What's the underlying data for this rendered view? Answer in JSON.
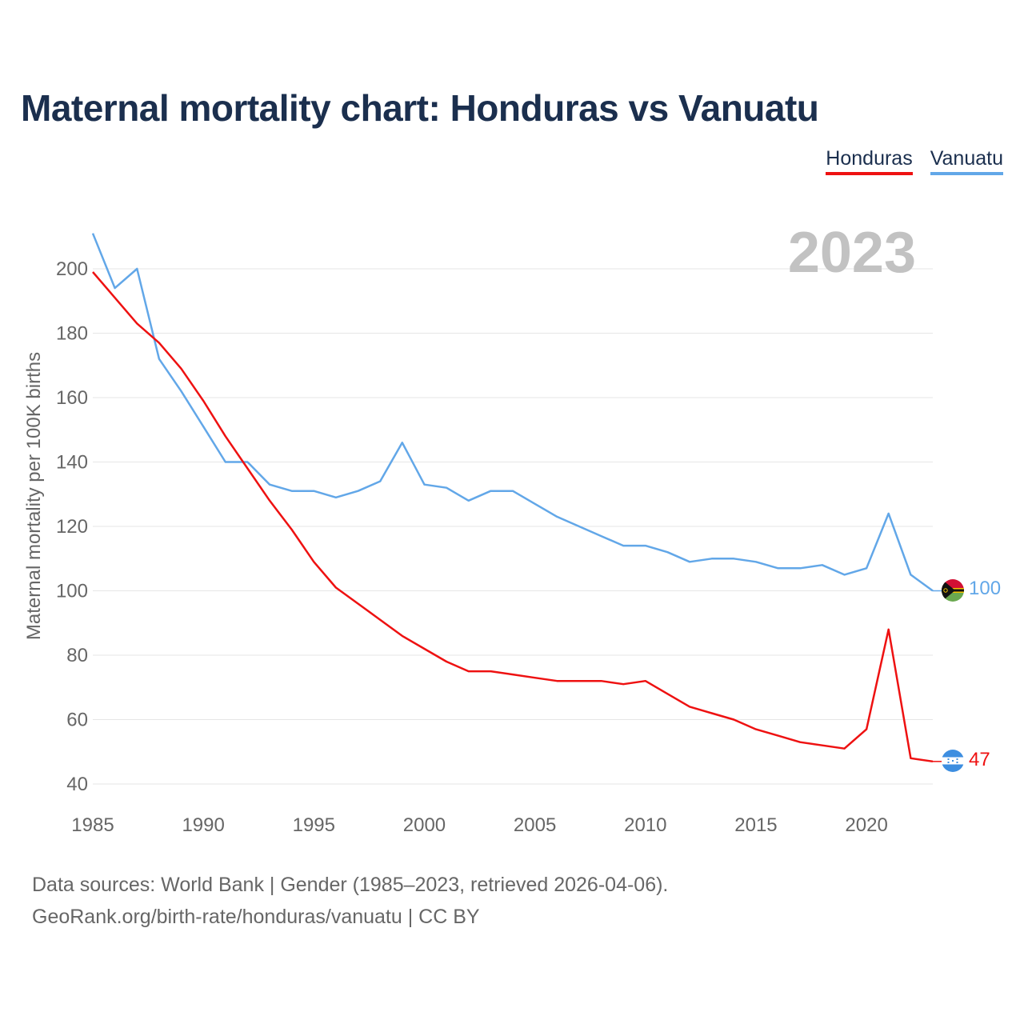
{
  "title": "Maternal mortality chart: Honduras vs Vanuatu",
  "legend": {
    "honduras": "Honduras",
    "vanuatu": "Vanuatu"
  },
  "year_label": "2023",
  "footer": {
    "line1": "Data sources: World Bank | Gender (1985–2023, retrieved 2026-04-06).",
    "line2": "GeoRank.org/birth-rate/honduras/vanuatu | CC BY"
  },
  "colors": {
    "honduras": "#ee1111",
    "vanuatu": "#62a7e8",
    "title": "#1b2f4e",
    "grid": "#e6e6e6",
    "tick": "#666666",
    "year": "#c2c2c2"
  },
  "chart_data": {
    "type": "line",
    "title": "Maternal mortality chart: Honduras vs Vanuatu",
    "xlabel": "",
    "ylabel": "Maternal mortality per 100K births",
    "xlim": [
      1985,
      2023
    ],
    "ylim": [
      38,
      210
    ],
    "x_ticks": [
      1985,
      1990,
      1995,
      2000,
      2005,
      2010,
      2015,
      2020
    ],
    "y_ticks": [
      40,
      60,
      80,
      100,
      120,
      140,
      160,
      180,
      200
    ],
    "x": [
      1985,
      1986,
      1987,
      1988,
      1989,
      1990,
      1991,
      1992,
      1993,
      1994,
      1995,
      1996,
      1997,
      1998,
      1999,
      2000,
      2001,
      2002,
      2003,
      2004,
      2005,
      2006,
      2007,
      2008,
      2009,
      2010,
      2011,
      2012,
      2013,
      2014,
      2015,
      2016,
      2017,
      2018,
      2019,
      2020,
      2021,
      2022,
      2023
    ],
    "series": [
      {
        "name": "Honduras",
        "color": "#ee1111",
        "end_label": "47",
        "values": [
          199,
          191,
          183,
          177,
          169,
          159,
          148,
          138,
          128,
          119,
          109,
          101,
          96,
          91,
          86,
          82,
          78,
          75,
          75,
          74,
          73,
          72,
          72,
          72,
          71,
          72,
          68,
          64,
          62,
          60,
          57,
          55,
          53,
          52,
          51,
          57,
          88,
          48,
          47
        ]
      },
      {
        "name": "Vanuatu",
        "color": "#62a7e8",
        "end_label": "100",
        "values": [
          211,
          194,
          200,
          172,
          162,
          151,
          140,
          140,
          133,
          131,
          131,
          129,
          131,
          134,
          146,
          133,
          132,
          128,
          131,
          131,
          127,
          123,
          120,
          117,
          114,
          114,
          112,
          109,
          110,
          110,
          109,
          107,
          107,
          108,
          105,
          107,
          124,
          105,
          100
        ]
      }
    ]
  }
}
